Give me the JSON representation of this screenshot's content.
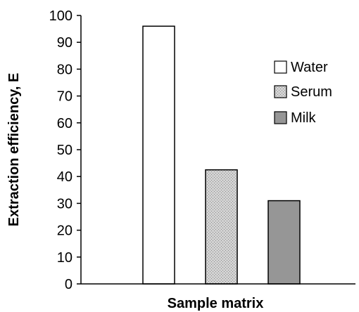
{
  "chart_data": {
    "type": "bar",
    "title": "",
    "xlabel": "Sample matrix",
    "ylabel": "Extraction efficiency, E",
    "ylim": [
      0,
      100
    ],
    "yticks": [
      0,
      10,
      20,
      30,
      40,
      50,
      60,
      70,
      80,
      90,
      100
    ],
    "categories": [
      "Water",
      "Serum",
      "Milk"
    ],
    "values": [
      96,
      42.5,
      31
    ],
    "legend": {
      "position": "right",
      "items": [
        {
          "label": "Water",
          "fill": "white"
        },
        {
          "label": "Serum",
          "fill": "stippled-gray"
        },
        {
          "label": "Milk",
          "fill": "gray"
        }
      ]
    },
    "grid": false
  },
  "colors": {
    "water": "#ffffff",
    "serum": "#c8c8c8",
    "milk": "#969696",
    "axis": "#000000"
  }
}
